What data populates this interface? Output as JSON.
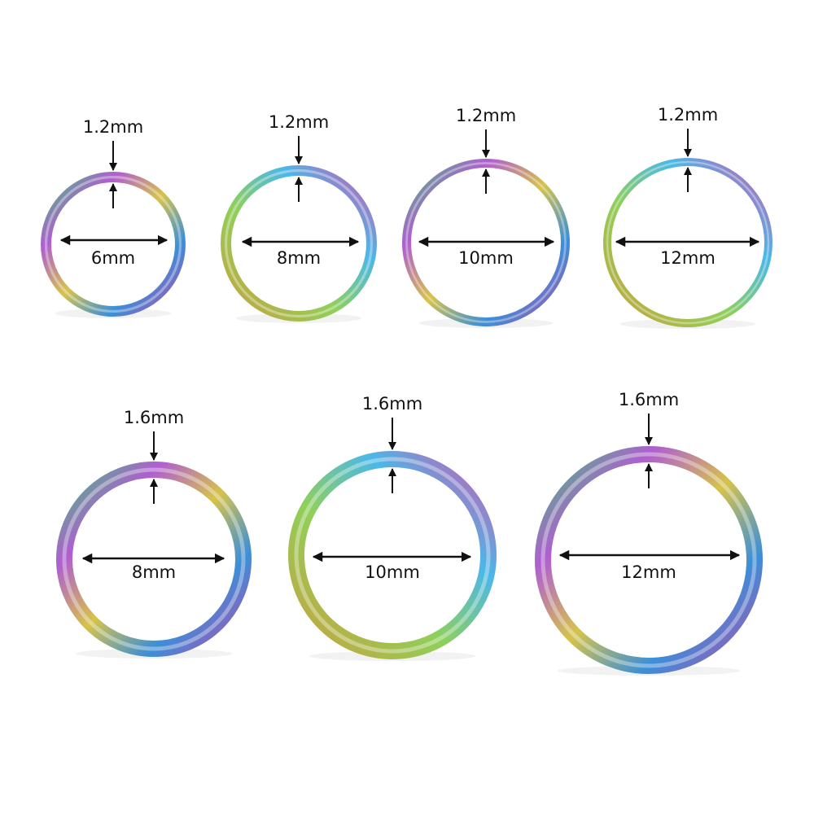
{
  "rings": [
    {
      "thickness": "1.2mm",
      "diameter": "6mm"
    },
    {
      "thickness": "1.2mm",
      "diameter": "8mm"
    },
    {
      "thickness": "1.2mm",
      "diameter": "10mm"
    },
    {
      "thickness": "1.2mm",
      "diameter": "12mm"
    },
    {
      "thickness": "1.6mm",
      "diameter": "8mm"
    },
    {
      "thickness": "1.6mm",
      "diameter": "10mm"
    },
    {
      "thickness": "1.6mm",
      "diameter": "12mm"
    }
  ]
}
